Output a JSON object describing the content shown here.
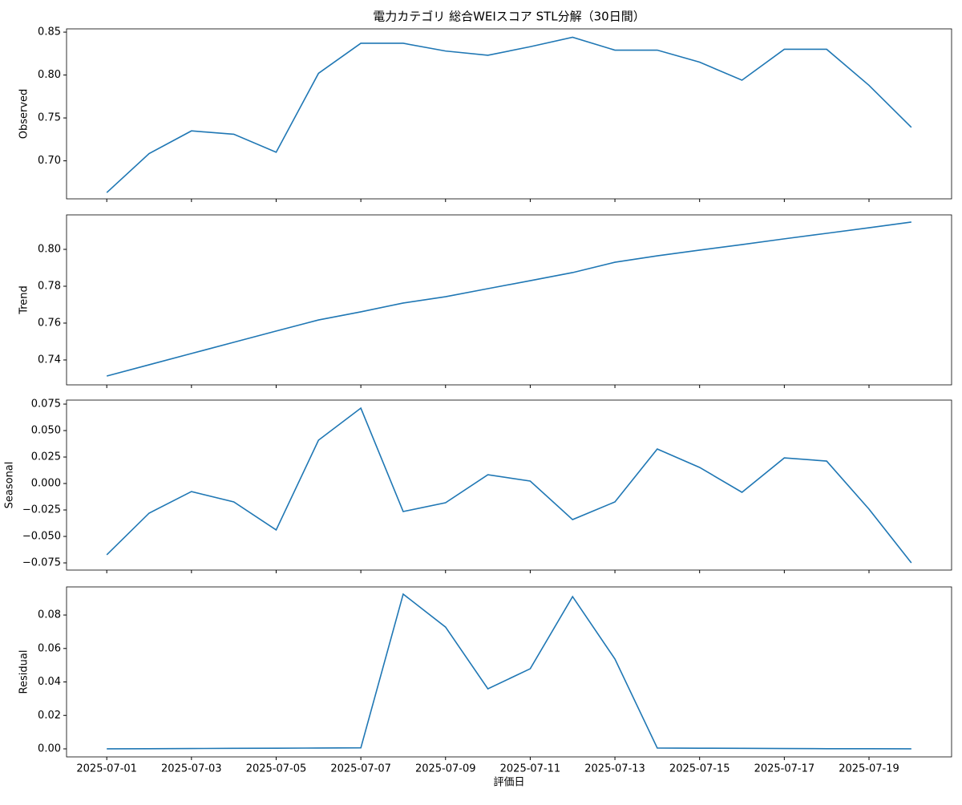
{
  "chart_data": [
    {
      "type": "line",
      "title": "電力カテゴリ 総合WEIスコア STL分解（30日間）",
      "ylabel": "Observed",
      "color": "#1f77b4",
      "x": [
        "2025-07-01",
        "2025-07-02",
        "2025-07-03",
        "2025-07-04",
        "2025-07-05",
        "2025-07-06",
        "2025-07-07",
        "2025-07-08",
        "2025-07-09",
        "2025-07-10",
        "2025-07-11",
        "2025-07-12",
        "2025-07-13",
        "2025-07-14",
        "2025-07-15",
        "2025-07-16",
        "2025-07-17",
        "2025-07-18",
        "2025-07-19",
        "2025-07-20"
      ],
      "values": [
        0.663,
        0.7085,
        0.7349,
        0.731,
        0.71,
        0.802,
        0.837,
        0.837,
        0.828,
        0.823,
        0.833,
        0.844,
        0.829,
        0.829,
        0.815,
        0.794,
        0.83,
        0.83,
        0.788,
        0.739
      ],
      "ylim": [
        0.6557,
        0.8538
      ],
      "yticks": [
        {
          "value": 0.7,
          "label": "0.70"
        },
        0.75,
        {
          "value": 0.8,
          "label": "0.80"
        },
        0.85
      ]
    },
    {
      "type": "line",
      "ylabel": "Trend",
      "color": "#1f77b4",
      "x": [
        "2025-07-01",
        "2025-07-02",
        "2025-07-03",
        "2025-07-04",
        "2025-07-05",
        "2025-07-06",
        "2025-07-07",
        "2025-07-08",
        "2025-07-09",
        "2025-07-10",
        "2025-07-11",
        "2025-07-12",
        "2025-07-13",
        "2025-07-14",
        "2025-07-15",
        "2025-07-16",
        "2025-07-17",
        "2025-07-18",
        "2025-07-19",
        "2025-07-20"
      ],
      "values": [
        0.7313,
        0.7374,
        0.7435,
        0.7496,
        0.7557,
        0.7617,
        0.7661,
        0.7709,
        0.7743,
        0.7787,
        0.783,
        0.7874,
        0.793,
        0.7965,
        0.7996,
        0.8026,
        0.8057,
        0.8087,
        0.8117,
        0.8148
      ],
      "ylim": [
        0.7265,
        0.8187
      ],
      "yticks": [
        0.74,
        0.76,
        0.78,
        {
          "value": 0.8,
          "label": "0.80"
        }
      ]
    },
    {
      "type": "line",
      "ylabel": "Seasonal",
      "color": "#1f77b4",
      "x": [
        "2025-07-01",
        "2025-07-02",
        "2025-07-03",
        "2025-07-04",
        "2025-07-05",
        "2025-07-06",
        "2025-07-07",
        "2025-07-08",
        "2025-07-09",
        "2025-07-10",
        "2025-07-11",
        "2025-07-12",
        "2025-07-13",
        "2025-07-14",
        "2025-07-15",
        "2025-07-16",
        "2025-07-17",
        "2025-07-18",
        "2025-07-19",
        "2025-07-20"
      ],
      "values": [
        -0.0674,
        -0.028,
        -0.0076,
        -0.0174,
        -0.0439,
        0.0409,
        0.0712,
        -0.0265,
        -0.0182,
        0.0083,
        0.0023,
        -0.0341,
        -0.0174,
        0.0326,
        0.0152,
        -0.0083,
        0.0242,
        0.0212,
        -0.0242,
        -0.075
      ],
      "ylim": [
        -0.0818,
        0.0788
      ],
      "yticks": [
        {
          "value": -0.075,
          "label": "−0.075"
        },
        {
          "value": -0.05,
          "label": "−0.050"
        },
        {
          "value": -0.025,
          "label": "−0.025"
        },
        {
          "value": 0,
          "label": "0.000"
        },
        0.025,
        {
          "value": 0.05,
          "label": "0.050"
        },
        0.075
      ]
    },
    {
      "type": "line",
      "ylabel": "Residual",
      "xlabel": "評価日",
      "color": "#1f77b4",
      "x": [
        "2025-07-01",
        "2025-07-02",
        "2025-07-03",
        "2025-07-04",
        "2025-07-05",
        "2025-07-06",
        "2025-07-07",
        "2025-07-08",
        "2025-07-09",
        "2025-07-10",
        "2025-07-11",
        "2025-07-12",
        "2025-07-13",
        "2025-07-14",
        "2025-07-15",
        "2025-07-16",
        "2025-07-17",
        "2025-07-18",
        "2025-07-19",
        "2025-07-20"
      ],
      "values": [
        0.0,
        0.0001,
        0.0002,
        0.0003,
        0.0004,
        0.0005,
        0.0006,
        0.0925,
        0.0728,
        0.0359,
        0.0479,
        0.091,
        0.0537,
        0.0005,
        0.0004,
        0.0003,
        0.0002,
        0.0001,
        0.0001,
        0.0
      ],
      "ylim": [
        -0.0048,
        0.0968
      ],
      "yticks": [
        {
          "value": 0,
          "label": "0.00"
        },
        0.02,
        0.04,
        0.06,
        0.08
      ],
      "xticks": [
        "2025-07-01",
        "2025-07-03",
        "2025-07-05",
        "2025-07-07",
        "2025-07-09",
        "2025-07-11",
        "2025-07-13",
        "2025-07-15",
        "2025-07-17",
        "2025-07-19"
      ]
    }
  ]
}
